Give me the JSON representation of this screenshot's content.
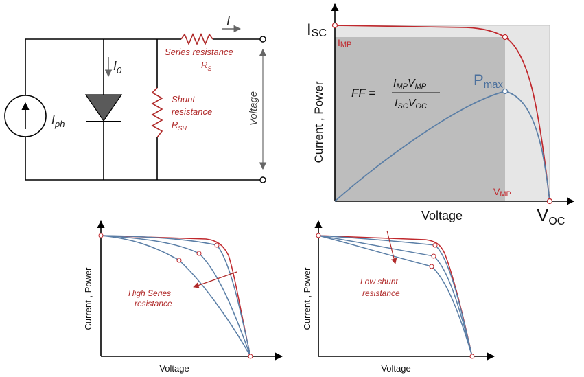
{
  "colors": {
    "iv_red": "#c0282d",
    "power_blue": "#5a7ea6",
    "annotation_red": "#b02a2a",
    "shade_dark": "#bdbdbd",
    "shade_light": "#e6e6e6",
    "diode_fill": "#5a5a5a"
  },
  "circuit": {
    "current_label": "I",
    "photo_current_label": "I",
    "photo_current_sub": "ph",
    "diode_current_label": "I",
    "diode_current_sub": "0",
    "series_label": "Series resistance",
    "series_symbol": "R",
    "series_sub": "S",
    "shunt_label_1": "Shunt",
    "shunt_label_2": "resistance",
    "shunt_symbol": "R",
    "shunt_sub": "SH",
    "voltage_label": "Voltage"
  },
  "main_plot": {
    "isc_main": "I",
    "isc_sub": "SC",
    "imp_main": "I",
    "imp_sub": "MP",
    "vmp_main": "V",
    "vmp_sub": "MP",
    "voc_main": "V",
    "voc_sub": "OC",
    "pmax_main": "P",
    "pmax_sub": "max",
    "ylabel": "Current , Power",
    "xlabel": "Voltage",
    "ff_lhs": "FF =",
    "ff_num_1": "I",
    "ff_num_1_sub": "MP",
    "ff_num_2": "V",
    "ff_num_2_sub": "MP",
    "ff_den_1": "I",
    "ff_den_1_sub": "SC",
    "ff_den_2": "V",
    "ff_den_2_sub": "OC"
  },
  "series_plot": {
    "ylabel": "Current , Power",
    "xlabel": "Voltage",
    "annotation_1": "High Series",
    "annotation_2": "resistance"
  },
  "shunt_plot": {
    "ylabel": "Current , Power",
    "xlabel": "Voltage",
    "annotation_1": "Low shunt",
    "annotation_2": "resistance"
  }
}
